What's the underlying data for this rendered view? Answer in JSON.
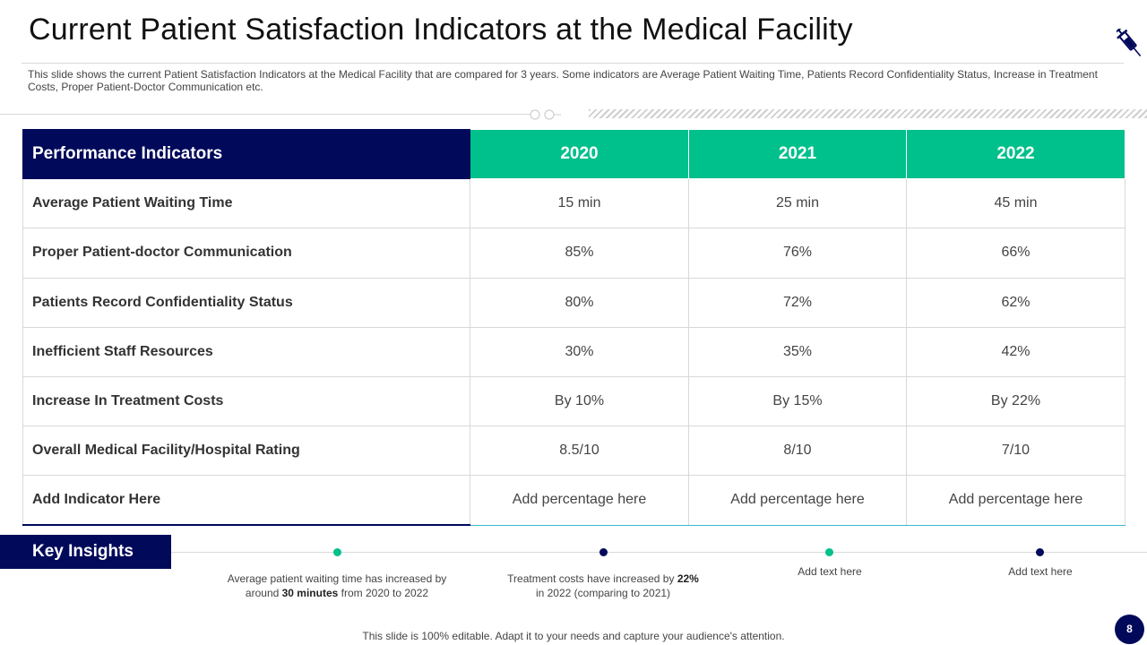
{
  "slide": {
    "title": "Current Patient Satisfaction Indicators at the Medical Facility",
    "subtitle": "This slide shows the current Patient Satisfaction Indicators at the Medical Facility that are compared for 3 years. Some indicators are Average Patient Waiting Time, Patients Record Confidentiality Status, Increase in Treatment Costs, Proper Patient-Doctor Communication etc."
  },
  "table": {
    "headers": [
      "Performance Indicators",
      "2020",
      "2021",
      "2022"
    ],
    "rows": [
      {
        "label": "Average Patient Waiting Time",
        "values": [
          "15 min",
          "25 min",
          "45 min"
        ]
      },
      {
        "label": "Proper Patient-doctor Communication",
        "values": [
          "85%",
          "76%",
          "66%"
        ]
      },
      {
        "label": "Patients Record Confidentiality  Status",
        "values": [
          "80%",
          "72%",
          "62%"
        ]
      },
      {
        "label": "Inefficient  Staff Resources",
        "values": [
          "30%",
          "35%",
          "42%"
        ]
      },
      {
        "label": "Increase In Treatment Costs",
        "values": [
          "By 10%",
          "By 15%",
          "By 22%"
        ]
      },
      {
        "label": "Overall Medical Facility/Hospital Rating",
        "values": [
          "8.5/10",
          "8/10",
          "7/10"
        ]
      },
      {
        "label": "Add Indicator Here",
        "values": [
          "Add percentage here",
          "Add percentage here",
          "Add percentage here"
        ]
      }
    ]
  },
  "insights": {
    "heading": "Key Insights",
    "items": [
      {
        "pre": "Average  patient waiting time has increased by around ",
        "bold": "30 minutes",
        "post": " from  2020  to 2022",
        "dot_color": "#00c08b"
      },
      {
        "pre": "Treatment  costs have  increased by ",
        "bold": "22%",
        "post": "  in 2022  (comparing  to 2021)",
        "dot_color": "#00095a"
      },
      {
        "pre": "Add text here",
        "bold": "",
        "post": "",
        "dot_color": "#00c08b"
      },
      {
        "pre": "Add text here",
        "bold": "",
        "post": "",
        "dot_color": "#00095a"
      }
    ]
  },
  "footer": {
    "note": "This slide is 100% editable. Adapt it to your needs and capture your audience's attention.",
    "page_number": "8"
  },
  "icons": {
    "syringe": "syringe-icon"
  },
  "colors": {
    "navy": "#00095a",
    "green": "#00c08b",
    "teal_rule": "#3cb9c8"
  }
}
